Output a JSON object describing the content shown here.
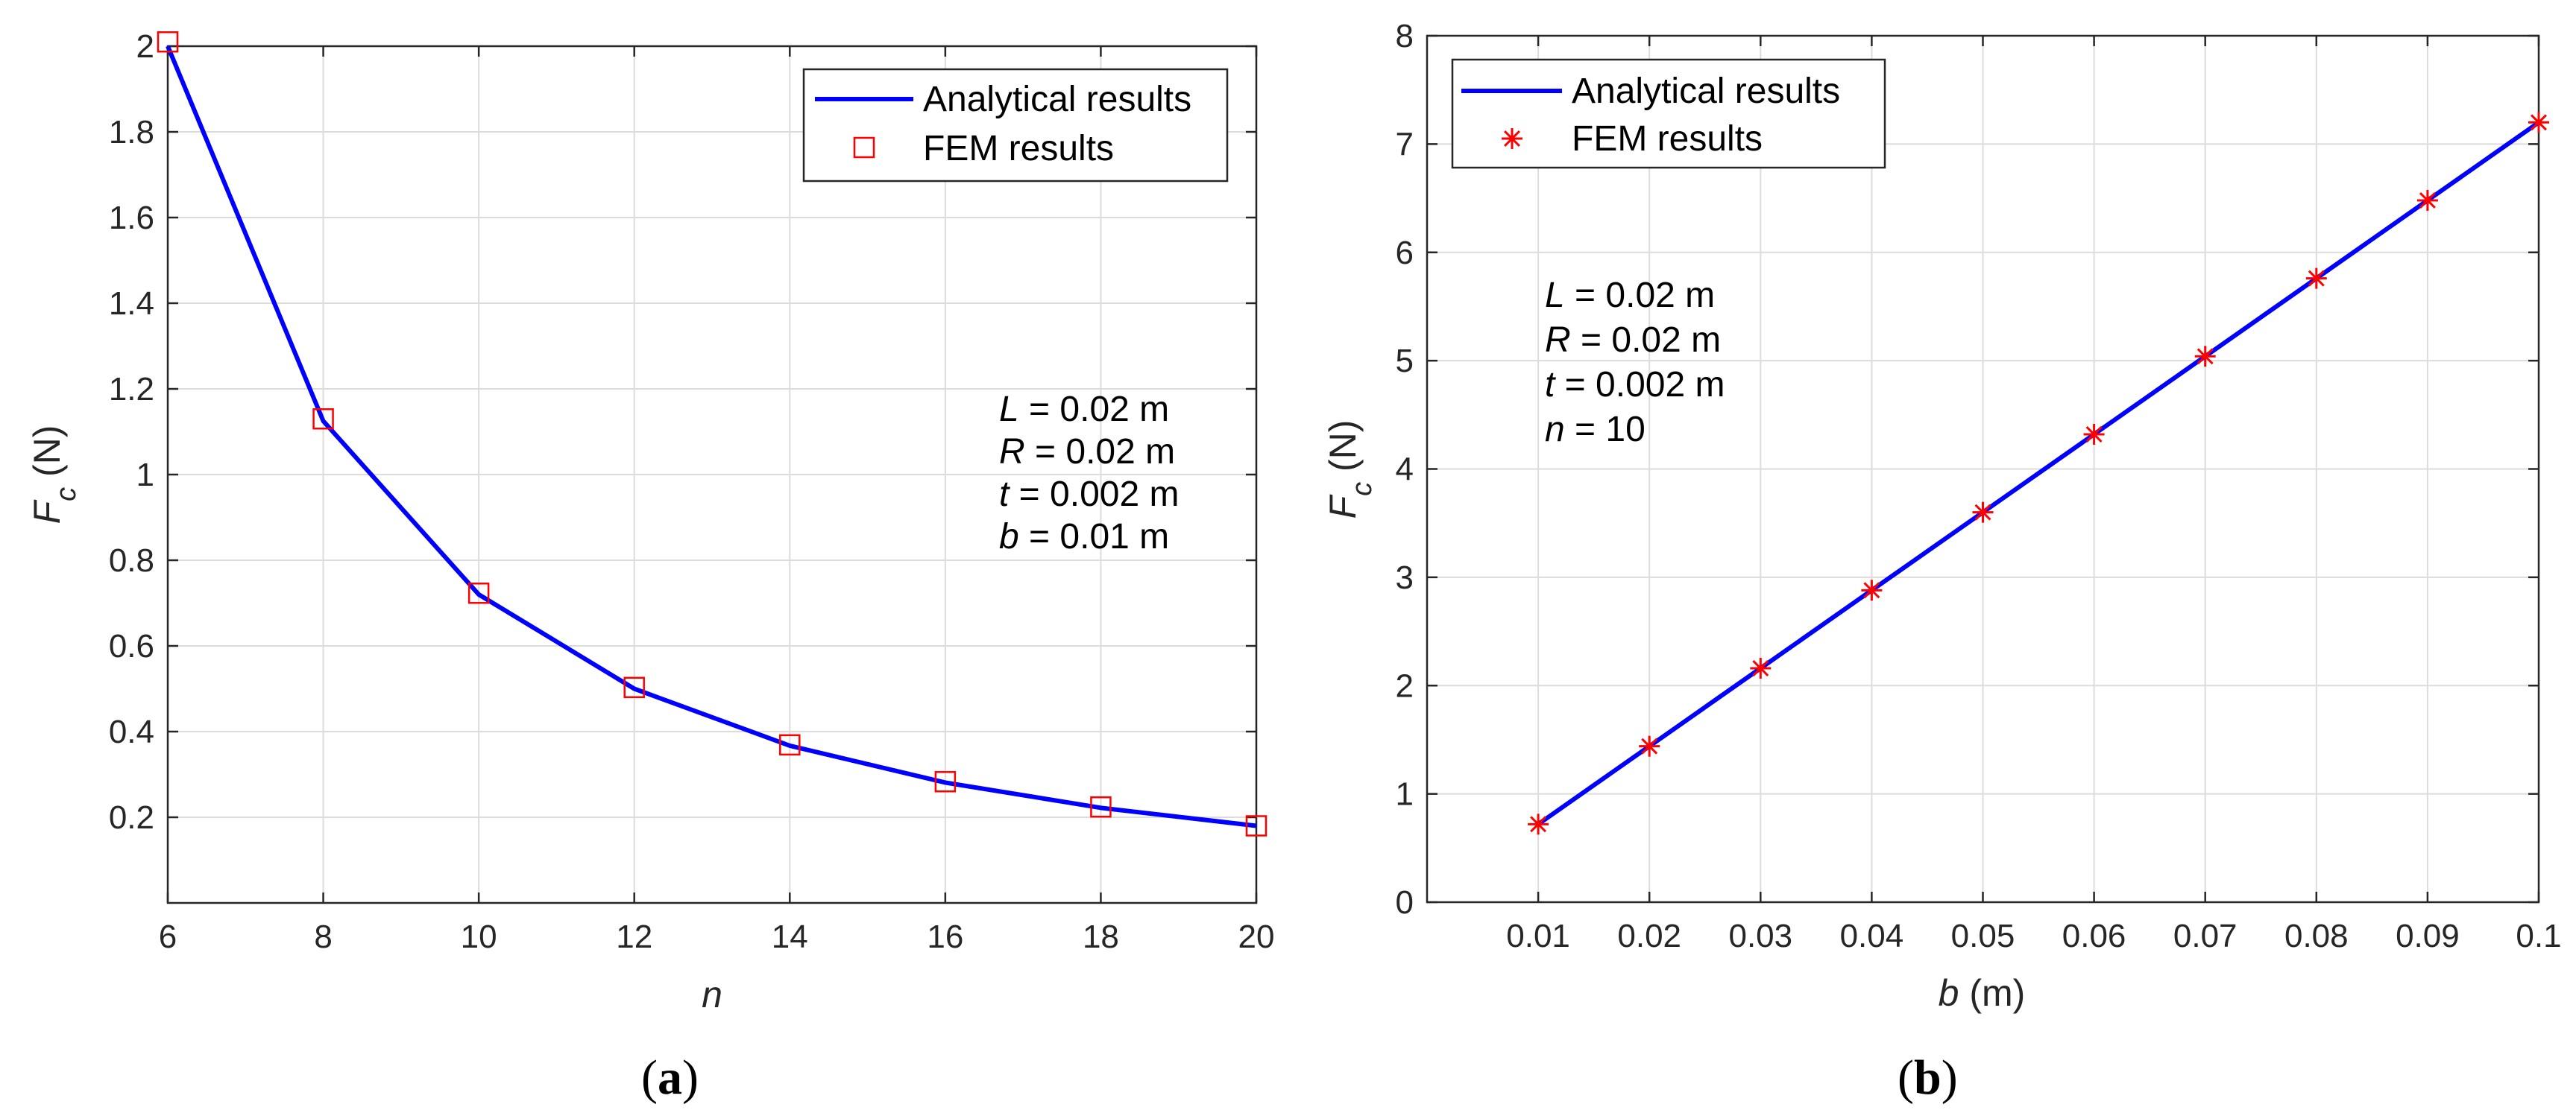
{
  "colors": {
    "analytical": "#0000ff",
    "fem": "#ff0000",
    "axis": "#262626",
    "grid": "#dcdcdc",
    "background": "#ffffff"
  },
  "chart_data": [
    {
      "panel": "(a)",
      "panel_letter": "a",
      "type": "line",
      "xlabel_var": "n",
      "ylabel_var": "F",
      "ylabel_sub": "c",
      "ylabel_unit": " (N)",
      "xlim": [
        6,
        20
      ],
      "ylim": [
        0,
        2
      ],
      "xticks": [
        6,
        8,
        10,
        12,
        14,
        16,
        18,
        20
      ],
      "xtick_labels": [
        "6",
        "8",
        "10",
        "12",
        "14",
        "16",
        "18",
        "20"
      ],
      "yticks": [
        0.2,
        0.4,
        0.6,
        0.8,
        1.0,
        1.2,
        1.4,
        1.6,
        1.8,
        2.0
      ],
      "ytick_labels": [
        "0.2",
        "0.4",
        "0.6",
        "0.8",
        "1",
        "1.2",
        "1.4",
        "1.6",
        "1.8",
        "2"
      ],
      "grid": true,
      "legend": {
        "placement": "top-right",
        "entries": [
          {
            "label": "Analytical results",
            "marker": "line"
          },
          {
            "label": "FEM results",
            "marker": "square"
          }
        ]
      },
      "series": [
        {
          "name": "Analytical results",
          "style": "line",
          "x": [
            6,
            8,
            10,
            12,
            14,
            16,
            18,
            20
          ],
          "y": [
            2.0,
            1.125,
            0.72,
            0.5,
            0.367,
            0.281,
            0.222,
            0.18
          ]
        },
        {
          "name": "FEM results",
          "style": "square",
          "x": [
            6,
            8,
            10,
            12,
            14,
            16,
            18,
            20
          ],
          "y": [
            2.01,
            1.13,
            0.723,
            0.503,
            0.369,
            0.283,
            0.224,
            0.18
          ]
        }
      ],
      "annotation": [
        {
          "var": "L",
          "text": " = 0.02 m"
        },
        {
          "var": "R",
          "text": " = 0.02 m"
        },
        {
          "var": "t",
          "text": " = 0.002 m"
        },
        {
          "var": "b",
          "text": " = 0.01 m"
        }
      ]
    },
    {
      "panel": "(b)",
      "panel_letter": "b",
      "type": "line",
      "xlabel_var": "b",
      "xlabel_unit": " (m)",
      "ylabel_var": "F",
      "ylabel_sub": "c",
      "ylabel_unit": " (N)",
      "xlim": [
        0,
        0.1
      ],
      "ylim": [
        0,
        8
      ],
      "xticks": [
        0.01,
        0.02,
        0.03,
        0.04,
        0.05,
        0.06,
        0.07,
        0.08,
        0.09,
        0.1
      ],
      "xtick_labels": [
        "0.01",
        "0.02",
        "0.03",
        "0.04",
        "0.05",
        "0.06",
        "0.07",
        "0.08",
        "0.09",
        "0.1"
      ],
      "yticks": [
        0,
        1,
        2,
        3,
        4,
        5,
        6,
        7,
        8
      ],
      "ytick_labels": [
        "0",
        "1",
        "2",
        "3",
        "4",
        "5",
        "6",
        "7",
        "8"
      ],
      "grid": true,
      "legend": {
        "placement": "top-left",
        "entries": [
          {
            "label": "Analytical results",
            "marker": "line"
          },
          {
            "label": "FEM results",
            "marker": "asterisk"
          }
        ]
      },
      "series": [
        {
          "name": "Analytical results",
          "style": "line",
          "x": [
            0.01,
            0.02,
            0.03,
            0.04,
            0.05,
            0.06,
            0.07,
            0.08,
            0.09,
            0.1
          ],
          "y": [
            0.72,
            1.44,
            2.16,
            2.88,
            3.6,
            4.32,
            5.04,
            5.76,
            6.48,
            7.2
          ]
        },
        {
          "name": "FEM results",
          "style": "asterisk",
          "x": [
            0.01,
            0.02,
            0.03,
            0.04,
            0.05,
            0.06,
            0.07,
            0.08,
            0.09,
            0.1
          ],
          "y": [
            0.72,
            1.44,
            2.16,
            2.88,
            3.6,
            4.32,
            5.04,
            5.76,
            6.48,
            7.2
          ]
        }
      ],
      "annotation": [
        {
          "var": "L",
          "text": " = 0.02 m"
        },
        {
          "var": "R",
          "text": " = 0.02 m"
        },
        {
          "var": "t",
          "text": " = 0.002 m"
        },
        {
          "var": "n",
          "text": " = 10"
        }
      ]
    }
  ]
}
